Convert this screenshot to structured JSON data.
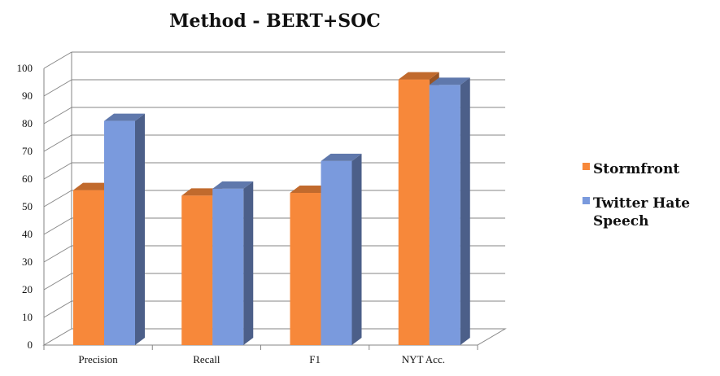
{
  "chart_data": {
    "type": "bar",
    "title": "Method - BERT+SOC",
    "categories": [
      "Precision",
      "Recall",
      "F1",
      "NYT Acc."
    ],
    "series": [
      {
        "name": "Stormfront",
        "values": [
          56,
          54,
          55,
          96
        ],
        "color": "#f7883a"
      },
      {
        "name": "Twitter Hate Speech",
        "values": [
          81,
          56.5,
          66.5,
          94
        ],
        "color": "#7a9add"
      }
    ],
    "legend_lines": [
      [
        "Stormfront"
      ],
      [
        "Twitter Hate",
        "Speech"
      ]
    ],
    "yticks": [
      "0",
      "10",
      "20",
      "30",
      "40",
      "50",
      "60",
      "70",
      "80",
      "90",
      "100"
    ],
    "ylim": [
      0,
      100
    ],
    "grid": true,
    "legend_position": "right",
    "style": "3d-clustered-column"
  }
}
